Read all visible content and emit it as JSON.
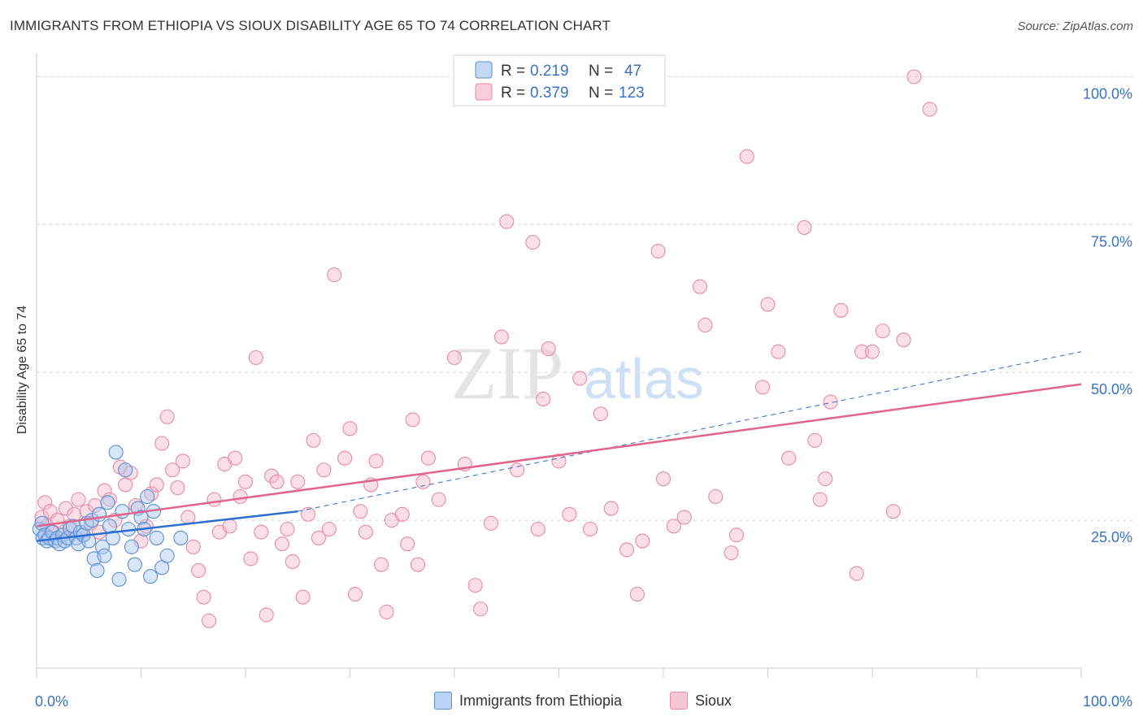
{
  "title": "IMMIGRANTS FROM ETHIOPIA VS SIOUX DISABILITY AGE 65 TO 74 CORRELATION CHART",
  "source": "Source: ZipAtlas.com",
  "watermark": {
    "zip": "ZIP",
    "atlas": "atlas"
  },
  "colors": {
    "blue_fill": "#a8c8f0",
    "blue_stroke": "#5b8fd6",
    "blue_line": "#2a6fd0",
    "pink_fill": "#f4b8c8",
    "pink_stroke": "#e88aa8",
    "pink_line": "#e0648c",
    "tick_label": "#3a72c4",
    "grid": "#d8d8d8"
  },
  "legend": {
    "rows": [
      {
        "r_label": "R =",
        "r_value": "0.219",
        "n_label": "N =",
        "n_value": "47"
      },
      {
        "r_label": "R =",
        "r_value": "0.379",
        "n_label": "N =",
        "n_value": "123"
      }
    ]
  },
  "chart_data": {
    "type": "scatter",
    "title": "IMMIGRANTS FROM ETHIOPIA VS SIOUX DISABILITY AGE 65 TO 74 CORRELATION CHART",
    "xlabel": "",
    "ylabel": "Disability Age 65 to 74",
    "xlim": [
      0,
      100
    ],
    "ylim": [
      0,
      105
    ],
    "x_tick_labels": [
      {
        "value": 0,
        "label": "0.0%"
      },
      {
        "value": 100,
        "label": "100.0%"
      }
    ],
    "y_tick_labels": [
      {
        "value": 25,
        "label": "25.0%"
      },
      {
        "value": 50,
        "label": "50.0%"
      },
      {
        "value": 75,
        "label": "75.0%"
      },
      {
        "value": 100,
        "label": "100.0%"
      }
    ],
    "series": [
      {
        "name": "Immigrants from Ethiopia",
        "color": "blue",
        "r": 0.219,
        "n": 47,
        "trend": {
          "x0": 0,
          "y0": 21.5,
          "x1": 25,
          "y1": 26.5
        },
        "trend_extended": {
          "x0": 25,
          "y0": 26.5,
          "x1": 100,
          "y1": 53.5
        },
        "points": [
          [
            0.3,
            23.5
          ],
          [
            0.5,
            24.5
          ],
          [
            0.6,
            22.0
          ],
          [
            0.8,
            22.5
          ],
          [
            1.0,
            21.5
          ],
          [
            1.2,
            22.0
          ],
          [
            1.5,
            23.0
          ],
          [
            1.8,
            21.5
          ],
          [
            2.0,
            22.0
          ],
          [
            2.2,
            21.0
          ],
          [
            2.5,
            22.5
          ],
          [
            2.7,
            21.5
          ],
          [
            3.0,
            22.0
          ],
          [
            3.2,
            23.5
          ],
          [
            3.5,
            24.0
          ],
          [
            3.8,
            22.0
          ],
          [
            4.0,
            21.0
          ],
          [
            4.2,
            23.0
          ],
          [
            4.5,
            22.5
          ],
          [
            4.8,
            24.5
          ],
          [
            5.0,
            21.5
          ],
          [
            5.3,
            25.0
          ],
          [
            5.5,
            18.5
          ],
          [
            5.8,
            16.5
          ],
          [
            6.0,
            26.0
          ],
          [
            6.3,
            20.5
          ],
          [
            6.5,
            19.0
          ],
          [
            6.8,
            28.0
          ],
          [
            7.0,
            24.0
          ],
          [
            7.3,
            22.0
          ],
          [
            7.6,
            36.5
          ],
          [
            7.9,
            15.0
          ],
          [
            8.2,
            26.5
          ],
          [
            8.5,
            33.5
          ],
          [
            8.8,
            23.5
          ],
          [
            9.1,
            20.5
          ],
          [
            9.4,
            17.5
          ],
          [
            9.7,
            27.0
          ],
          [
            10.0,
            25.5
          ],
          [
            10.3,
            23.5
          ],
          [
            10.6,
            29.0
          ],
          [
            10.9,
            15.5
          ],
          [
            11.2,
            26.5
          ],
          [
            11.5,
            22.0
          ],
          [
            12.0,
            17.0
          ],
          [
            12.5,
            19.0
          ],
          [
            13.8,
            22.0
          ]
        ]
      },
      {
        "name": "Sioux",
        "color": "pink",
        "r": 0.379,
        "n": 123,
        "trend": {
          "x0": 0,
          "y0": 24.0,
          "x1": 100,
          "y1": 48.0
        },
        "points": [
          [
            0.5,
            25.5
          ],
          [
            0.8,
            28.0
          ],
          [
            1.0,
            24.0
          ],
          [
            1.3,
            26.5
          ],
          [
            1.6,
            23.0
          ],
          [
            2.0,
            25.0
          ],
          [
            2.4,
            22.5
          ],
          [
            2.8,
            27.0
          ],
          [
            3.2,
            24.0
          ],
          [
            3.6,
            26.0
          ],
          [
            4.0,
            28.5
          ],
          [
            4.4,
            22.5
          ],
          [
            4.8,
            26.5
          ],
          [
            5.2,
            24.5
          ],
          [
            5.6,
            27.5
          ],
          [
            6.0,
            23.0
          ],
          [
            6.5,
            30.0
          ],
          [
            7.0,
            28.5
          ],
          [
            7.5,
            25.0
          ],
          [
            8.0,
            34.0
          ],
          [
            8.5,
            31.0
          ],
          [
            9.0,
            33.0
          ],
          [
            9.5,
            27.5
          ],
          [
            10.0,
            21.5
          ],
          [
            10.5,
            24.0
          ],
          [
            11.0,
            29.5
          ],
          [
            11.5,
            31.0
          ],
          [
            12.0,
            38.0
          ],
          [
            12.5,
            42.5
          ],
          [
            13.0,
            33.5
          ],
          [
            13.5,
            30.5
          ],
          [
            14.0,
            35.0
          ],
          [
            14.5,
            25.5
          ],
          [
            15.0,
            20.5
          ],
          [
            15.5,
            16.5
          ],
          [
            16.0,
            12.0
          ],
          [
            16.5,
            8.0
          ],
          [
            17.0,
            28.5
          ],
          [
            17.5,
            23.0
          ],
          [
            18.0,
            34.5
          ],
          [
            18.5,
            24.0
          ],
          [
            19.0,
            35.5
          ],
          [
            19.5,
            29.0
          ],
          [
            20.0,
            31.5
          ],
          [
            20.5,
            18.5
          ],
          [
            21.0,
            52.5
          ],
          [
            21.5,
            23.0
          ],
          [
            22.0,
            9.0
          ],
          [
            22.5,
            32.5
          ],
          [
            23.0,
            31.5
          ],
          [
            23.5,
            21.0
          ],
          [
            24.0,
            23.5
          ],
          [
            24.5,
            18.0
          ],
          [
            25.0,
            31.5
          ],
          [
            25.5,
            12.0
          ],
          [
            26.0,
            26.0
          ],
          [
            26.5,
            38.5
          ],
          [
            27.0,
            22.0
          ],
          [
            27.5,
            33.5
          ],
          [
            28.0,
            23.5
          ],
          [
            28.5,
            66.5
          ],
          [
            29.5,
            35.5
          ],
          [
            30.0,
            40.5
          ],
          [
            30.5,
            12.5
          ],
          [
            31.0,
            26.5
          ],
          [
            31.5,
            23.0
          ],
          [
            32.0,
            31.0
          ],
          [
            32.5,
            35.0
          ],
          [
            33.0,
            17.5
          ],
          [
            33.5,
            9.5
          ],
          [
            34.0,
            25.0
          ],
          [
            35.0,
            26.0
          ],
          [
            35.5,
            21.0
          ],
          [
            36.0,
            42.0
          ],
          [
            36.5,
            17.5
          ],
          [
            37.0,
            31.5
          ],
          [
            37.5,
            35.5
          ],
          [
            38.5,
            28.5
          ],
          [
            40.0,
            52.5
          ],
          [
            41.0,
            34.5
          ],
          [
            42.0,
            14.0
          ],
          [
            42.5,
            10.0
          ],
          [
            43.5,
            24.5
          ],
          [
            44.5,
            56.0
          ],
          [
            45.0,
            75.5
          ],
          [
            46.0,
            33.5
          ],
          [
            47.5,
            72.0
          ],
          [
            48.0,
            23.5
          ],
          [
            48.5,
            45.5
          ],
          [
            49.0,
            54.0
          ],
          [
            50.0,
            35.0
          ],
          [
            51.0,
            26.0
          ],
          [
            52.0,
            49.0
          ],
          [
            53.0,
            23.5
          ],
          [
            54.0,
            43.0
          ],
          [
            55.0,
            27.0
          ],
          [
            56.5,
            20.0
          ],
          [
            57.5,
            12.5
          ],
          [
            58.0,
            21.5
          ],
          [
            59.5,
            70.5
          ],
          [
            60.0,
            32.0
          ],
          [
            61.0,
            24.0
          ],
          [
            62.0,
            25.5
          ],
          [
            63.5,
            64.5
          ],
          [
            64.0,
            58.0
          ],
          [
            65.0,
            29.0
          ],
          [
            66.5,
            19.5
          ],
          [
            67.0,
            22.5
          ],
          [
            68.0,
            86.5
          ],
          [
            69.5,
            47.5
          ],
          [
            70.0,
            61.5
          ],
          [
            71.0,
            53.5
          ],
          [
            72.0,
            35.5
          ],
          [
            73.5,
            74.5
          ],
          [
            74.5,
            38.5
          ],
          [
            75.0,
            28.5
          ],
          [
            75.5,
            32.0
          ],
          [
            76.0,
            45.0
          ],
          [
            77.0,
            60.5
          ],
          [
            78.5,
            16.0
          ],
          [
            79.0,
            53.5
          ],
          [
            80.0,
            53.5
          ],
          [
            81.0,
            57.0
          ],
          [
            82.0,
            26.5
          ],
          [
            83.0,
            55.5
          ],
          [
            84.0,
            100.0
          ],
          [
            85.5,
            94.5
          ]
        ]
      }
    ],
    "legend_position": "top-center"
  }
}
